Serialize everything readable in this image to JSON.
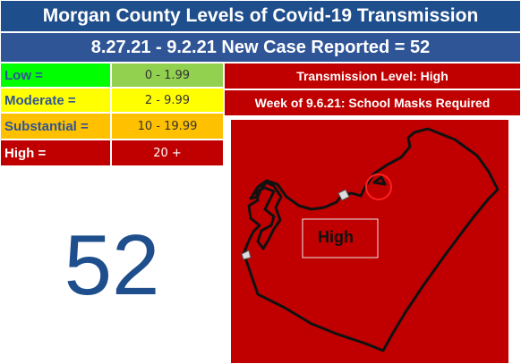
{
  "header": {
    "title": "Morgan County Levels of Covid-19 Transmission",
    "subtitle": "8.27.21 - 9.2.21 New Case Reported = 52"
  },
  "levels": [
    {
      "label": "Low =",
      "range": "0 - 1.99"
    },
    {
      "label": "Moderate =",
      "range": "2 - 9.99"
    },
    {
      "label": "Substantial =",
      "range": "10 - 19.99"
    },
    {
      "label": "High =",
      "range": "20 +"
    }
  ],
  "status": {
    "level": "Transmission Level: High",
    "week": "Week of 9.6.21: School Masks Required"
  },
  "big_number": "52",
  "map": {
    "label": "High"
  }
}
